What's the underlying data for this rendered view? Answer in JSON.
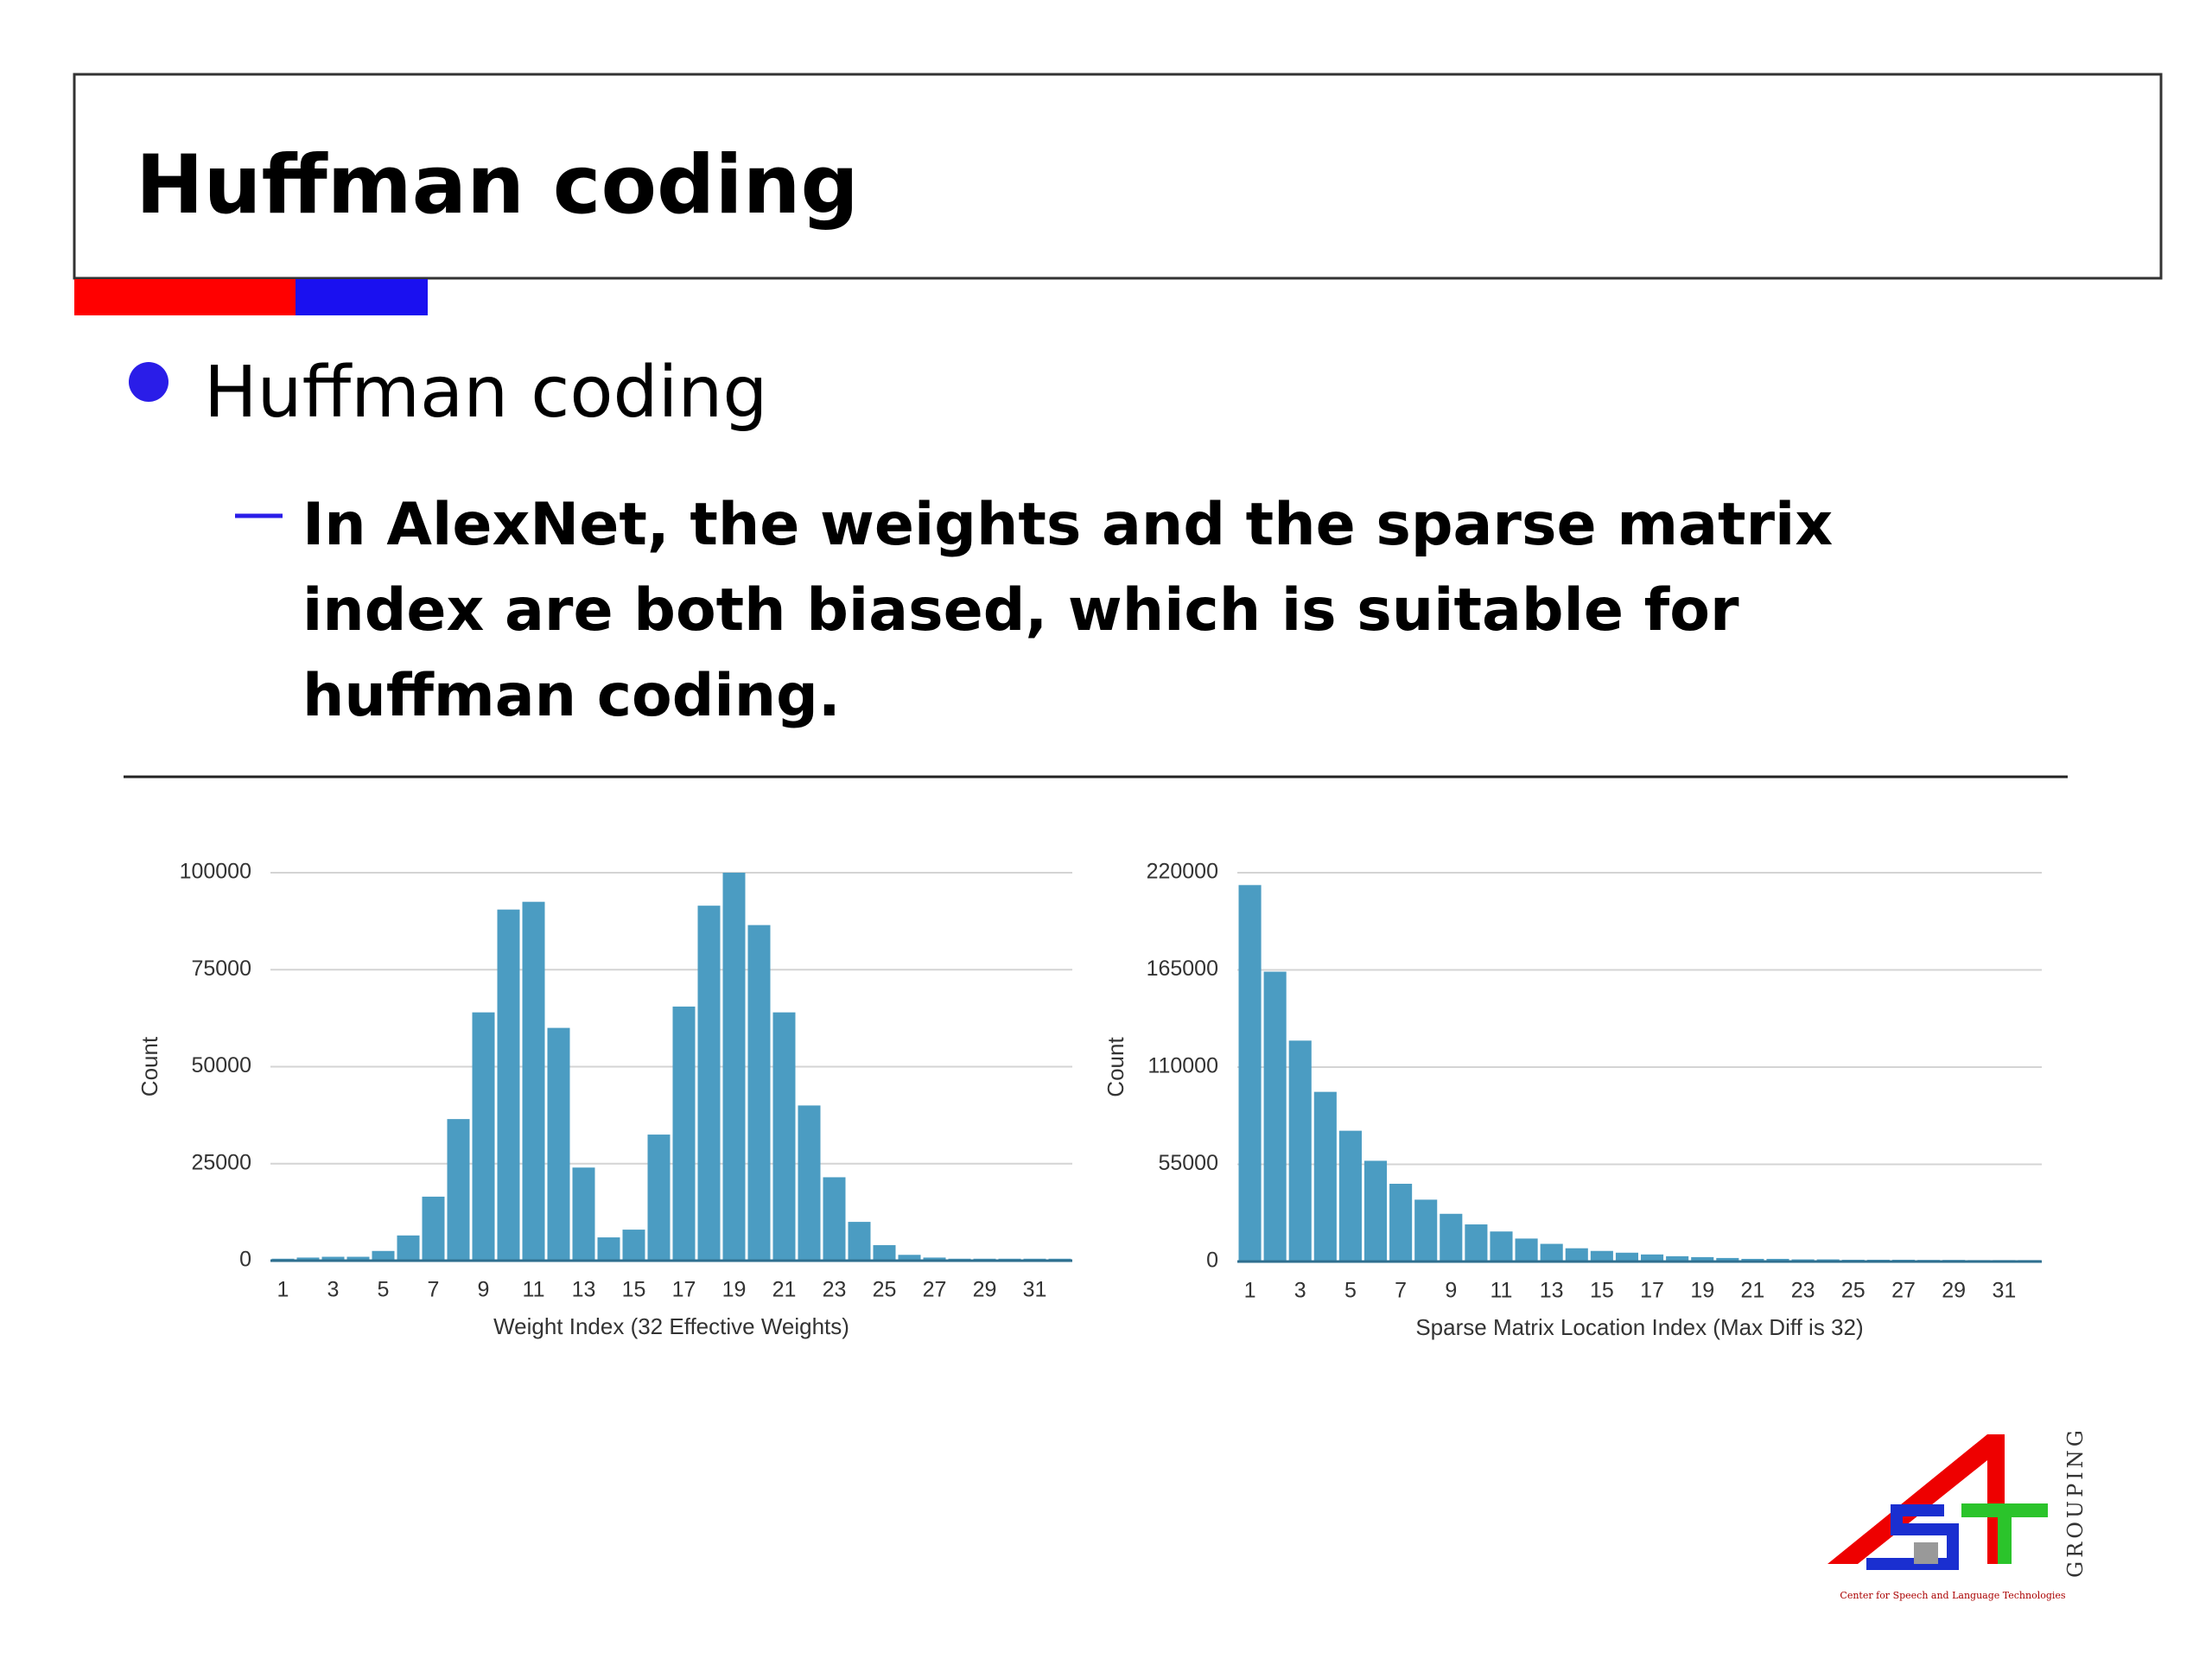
{
  "header": {
    "title": "Huffman coding"
  },
  "bullets": [
    {
      "text": "Huffman coding",
      "sub": [
        "In AlexNet, the weights and the sparse matrix",
        "index are both biased, which is suitable for",
        "huffman coding."
      ]
    }
  ],
  "logo": {
    "side_text": "GROUPING",
    "caption": "Center for Speech and Language Technologies"
  },
  "chart_data": [
    {
      "type": "bar",
      "x_label": "Weight Index (32 Effective Weights)",
      "y_label": "Count",
      "color": "#4b9cc2",
      "grid": true,
      "categories": [
        "1",
        null,
        "3",
        null,
        "5",
        null,
        "7",
        null,
        "9",
        null,
        "11",
        null,
        "13",
        null,
        "15",
        null,
        "17",
        null,
        "19",
        null,
        "21",
        null,
        "23",
        null,
        "25",
        null,
        "27",
        null,
        "29",
        null,
        "31",
        null
      ],
      "values": [
        500,
        800,
        1000,
        1000,
        2500,
        6500,
        16500,
        36500,
        64000,
        90500,
        92500,
        60000,
        24000,
        6000,
        8000,
        32500,
        65500,
        91500,
        100000,
        86500,
        64000,
        40000,
        21500,
        10000,
        4000,
        1500,
        800,
        500,
        500,
        500,
        500,
        500
      ],
      "ylim": [
        0,
        100000
      ],
      "yticks": [
        0,
        25000,
        50000,
        75000,
        100000
      ]
    },
    {
      "type": "bar",
      "x_label": "Sparse Matrix Location Index (Max Diff is 32)",
      "y_label": "Count",
      "color": "#4b9cc2",
      "grid": true,
      "categories": [
        "1",
        null,
        "3",
        null,
        "5",
        null,
        "7",
        null,
        "9",
        null,
        "11",
        null,
        "13",
        null,
        "15",
        null,
        "17",
        null,
        "19",
        null,
        "21",
        null,
        "23",
        null,
        "25",
        null,
        "27",
        null,
        "29",
        null,
        "31",
        null
      ],
      "values": [
        213000,
        164000,
        125000,
        96000,
        74000,
        57000,
        44000,
        35000,
        27000,
        21000,
        17000,
        13000,
        10000,
        7500,
        6000,
        5000,
        4000,
        3000,
        2500,
        2000,
        1500,
        1500,
        1200,
        1200,
        1000,
        1000,
        1000,
        900,
        900,
        800,
        800,
        800
      ],
      "ylim": [
        0,
        220000
      ],
      "yticks": [
        0,
        55000,
        110000,
        165000,
        220000
      ]
    }
  ]
}
